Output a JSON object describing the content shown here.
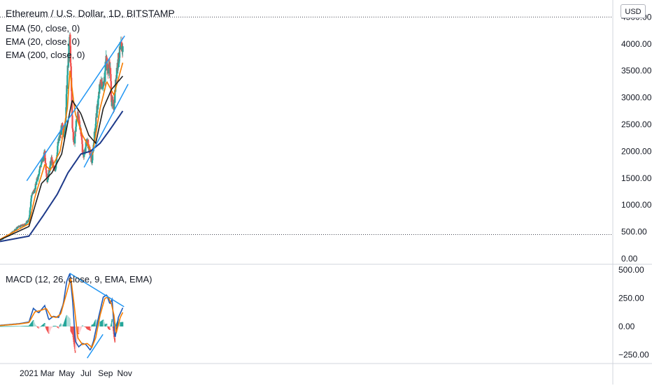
{
  "header": {
    "title": "Ethereum / U.S. Dollar, 1D, BITSTAMP",
    "indicators": [
      "EMA (50, close, 0)",
      "EMA (20, close, 0)",
      "EMA (200, close, 0)"
    ],
    "macd_label": "MACD (12, 26, close, 9, EMA, EMA)",
    "currency_badge": "USD"
  },
  "colors": {
    "up": "#26a69a",
    "down": "#ef5350",
    "ema20": "#f57c00",
    "ema50": "#212121",
    "ema200": "#1e3a8a",
    "trendline": "#2196f3",
    "macd": "#1e5ab8",
    "signal": "#f57c00",
    "grid": "#d1d4dc"
  },
  "chart_data": [
    {
      "type": "candlestick",
      "title": "Ethereum / U.S. Dollar, 1D, BITSTAMP",
      "x_ticks": [
        "2021",
        "Mar",
        "May",
        "Jul",
        "Sep",
        "Nov"
      ],
      "x_tick_dates": [
        "2021-01-01",
        "2021-03-01",
        "2021-05-01",
        "2021-07-01",
        "2021-09-01",
        "2021-11-01"
      ],
      "y_ticks": [
        0,
        500,
        1000,
        1500,
        2000,
        2500,
        3000,
        3500,
        4000,
        4500
      ],
      "y_tick_labels": [
        "0.00",
        "500.00",
        "1000.00",
        "1500.00",
        "2000.00",
        "2500.00",
        "3000.00",
        "3500.00",
        "4000.00",
        "4500.00"
      ],
      "ylim": [
        0,
        4500
      ],
      "close_anchors": [
        {
          "date": "2020-10-01",
          "close": 350
        },
        {
          "date": "2020-11-01",
          "close": 450
        },
        {
          "date": "2020-11-25",
          "close": 580
        },
        {
          "date": "2020-12-20",
          "close": 640
        },
        {
          "date": "2021-01-01",
          "close": 730
        },
        {
          "date": "2021-01-10",
          "close": 1200
        },
        {
          "date": "2021-01-20",
          "close": 1300
        },
        {
          "date": "2021-02-05",
          "close": 1700
        },
        {
          "date": "2021-02-20",
          "close": 1950
        },
        {
          "date": "2021-02-28",
          "close": 1450
        },
        {
          "date": "2021-03-13",
          "close": 1850
        },
        {
          "date": "2021-03-25",
          "close": 1600
        },
        {
          "date": "2021-04-02",
          "close": 2100
        },
        {
          "date": "2021-04-16",
          "close": 2450
        },
        {
          "date": "2021-04-25",
          "close": 2300
        },
        {
          "date": "2021-05-03",
          "close": 3400
        },
        {
          "date": "2021-05-11",
          "close": 4150
        },
        {
          "date": "2021-05-19",
          "close": 2500
        },
        {
          "date": "2021-05-24",
          "close": 2100
        },
        {
          "date": "2021-06-03",
          "close": 2700
        },
        {
          "date": "2021-06-15",
          "close": 2400
        },
        {
          "date": "2021-06-22",
          "close": 1900
        },
        {
          "date": "2021-07-05",
          "close": 2200
        },
        {
          "date": "2021-07-20",
          "close": 1800
        },
        {
          "date": "2021-08-01",
          "close": 2550
        },
        {
          "date": "2021-08-15",
          "close": 3250
        },
        {
          "date": "2021-08-30",
          "close": 3300
        },
        {
          "date": "2021-09-03",
          "close": 3900
        },
        {
          "date": "2021-09-07",
          "close": 3500
        },
        {
          "date": "2021-09-15",
          "close": 3600
        },
        {
          "date": "2021-09-21",
          "close": 2900
        },
        {
          "date": "2021-09-28",
          "close": 2850
        },
        {
          "date": "2021-10-07",
          "close": 3550
        },
        {
          "date": "2021-10-15",
          "close": 3800
        },
        {
          "date": "2021-10-22",
          "close": 3950
        },
        {
          "date": "2021-10-26",
          "close": 3900
        }
      ],
      "series": [
        {
          "name": "EMA (20, close, 0)",
          "points": [
            [
              "2020-10-01",
              360
            ],
            [
              "2021-01-01",
              650
            ],
            [
              "2021-01-20",
              1150
            ],
            [
              "2021-02-20",
              1750
            ],
            [
              "2021-03-10",
              1650
            ],
            [
              "2021-04-10",
              2000
            ],
            [
              "2021-05-03",
              2800
            ],
            [
              "2021-05-11",
              3500
            ],
            [
              "2021-05-28",
              2700
            ],
            [
              "2021-06-20",
              2300
            ],
            [
              "2021-07-22",
              1950
            ],
            [
              "2021-08-15",
              2800
            ],
            [
              "2021-09-05",
              3300
            ],
            [
              "2021-09-28",
              3050
            ],
            [
              "2021-10-26",
              3650
            ]
          ]
        },
        {
          "name": "EMA (50, close, 0)",
          "points": [
            [
              "2020-10-01",
              350
            ],
            [
              "2021-01-01",
              600
            ],
            [
              "2021-02-10",
              1400
            ],
            [
              "2021-03-15",
              1600
            ],
            [
              "2021-04-15",
              1950
            ],
            [
              "2021-05-18",
              2950
            ],
            [
              "2021-06-15",
              2700
            ],
            [
              "2021-07-10",
              2300
            ],
            [
              "2021-08-01",
              2150
            ],
            [
              "2021-08-25",
              2800
            ],
            [
              "2021-09-20",
              3150
            ],
            [
              "2021-10-26",
              3400
            ]
          ]
        },
        {
          "name": "EMA (200, close, 0)",
          "points": [
            [
              "2020-10-01",
              320
            ],
            [
              "2021-01-01",
              420
            ],
            [
              "2021-02-15",
              800
            ],
            [
              "2021-04-01",
              1200
            ],
            [
              "2021-05-05",
              1600
            ],
            [
              "2021-06-15",
              1950
            ],
            [
              "2021-07-15",
              2000
            ],
            [
              "2021-08-15",
              2150
            ],
            [
              "2021-09-15",
              2400
            ],
            [
              "2021-10-26",
              2750
            ]
          ]
        }
      ],
      "trendlines": [
        {
          "from": [
            "2020-12-25",
            1450
          ],
          "to": [
            "2021-11-01",
            4150
          ]
        },
        {
          "from": [
            "2021-06-25",
            1700
          ],
          "to": [
            "2021-11-12",
            3250
          ]
        }
      ],
      "reference_lines": [
        4500,
        450
      ]
    },
    {
      "type": "macd",
      "title": "MACD (12, 26, close, 9, EMA, EMA)",
      "y_ticks": [
        -250,
        0,
        250,
        500
      ],
      "y_tick_labels": [
        "−250.00",
        "0.00",
        "250.00",
        "500.00"
      ],
      "ylim": [
        -320,
        540
      ],
      "series": [
        {
          "name": "MACD",
          "points": [
            [
              "2020-10-01",
              10
            ],
            [
              "2020-12-01",
              25
            ],
            [
              "2021-01-01",
              40
            ],
            [
              "2021-01-15",
              160
            ],
            [
              "2021-02-01",
              120
            ],
            [
              "2021-02-20",
              185
            ],
            [
              "2021-03-05",
              60
            ],
            [
              "2021-03-20",
              90
            ],
            [
              "2021-04-05",
              80
            ],
            [
              "2021-04-20",
              200
            ],
            [
              "2021-05-01",
              400
            ],
            [
              "2021-05-11",
              470
            ],
            [
              "2021-05-20",
              220
            ],
            [
              "2021-05-28",
              -130
            ],
            [
              "2021-06-08",
              -180
            ],
            [
              "2021-06-20",
              -150
            ],
            [
              "2021-07-01",
              -160
            ],
            [
              "2021-07-15",
              -210
            ],
            [
              "2021-07-25",
              -130
            ],
            [
              "2021-08-10",
              80
            ],
            [
              "2021-08-25",
              260
            ],
            [
              "2021-09-05",
              280
            ],
            [
              "2021-09-15",
              200
            ],
            [
              "2021-09-22",
              240
            ],
            [
              "2021-10-01",
              -110
            ],
            [
              "2021-10-12",
              80
            ],
            [
              "2021-10-26",
              165
            ]
          ]
        },
        {
          "name": "Signal",
          "points": [
            [
              "2020-10-01",
              8
            ],
            [
              "2020-12-01",
              22
            ],
            [
              "2021-01-01",
              35
            ],
            [
              "2021-01-20",
              130
            ],
            [
              "2021-02-05",
              140
            ],
            [
              "2021-02-25",
              160
            ],
            [
              "2021-03-12",
              90
            ],
            [
              "2021-03-28",
              80
            ],
            [
              "2021-04-12",
              110
            ],
            [
              "2021-05-01",
              300
            ],
            [
              "2021-05-14",
              430
            ],
            [
              "2021-05-25",
              180
            ],
            [
              "2021-06-05",
              -100
            ],
            [
              "2021-06-20",
              -160
            ],
            [
              "2021-07-05",
              -150
            ],
            [
              "2021-07-20",
              -185
            ],
            [
              "2021-08-01",
              -100
            ],
            [
              "2021-08-15",
              100
            ],
            [
              "2021-08-30",
              250
            ],
            [
              "2021-09-10",
              260
            ],
            [
              "2021-09-20",
              200
            ],
            [
              "2021-09-28",
              100
            ],
            [
              "2021-10-05",
              -60
            ],
            [
              "2021-10-18",
              80
            ],
            [
              "2021-10-26",
              125
            ]
          ]
        }
      ],
      "trendlines": [
        {
          "from": [
            "2021-05-11",
            470
          ],
          "to": [
            "2021-10-30",
            175
          ]
        },
        {
          "from": [
            "2021-07-05",
            -280
          ],
          "to": [
            "2021-08-24",
            -70
          ]
        }
      ]
    }
  ]
}
